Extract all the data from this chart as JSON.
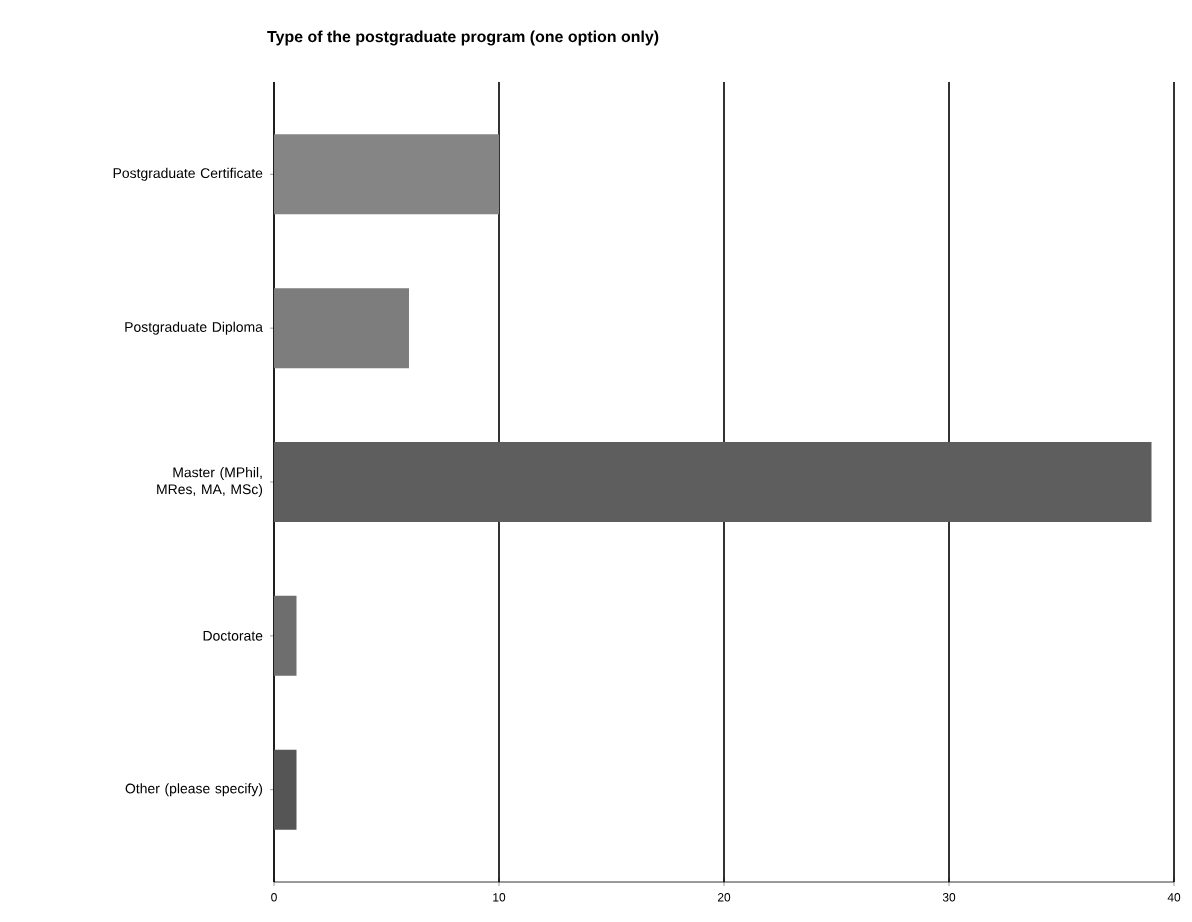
{
  "chart_data": {
    "type": "bar",
    "orientation": "horizontal",
    "title": "Type of the postgraduate  program (one option only)",
    "categories": [
      "Postgraduate Certificate",
      "Postgraduate Diploma",
      "Master (MPhil, MRes, MA, MSc)",
      "Doctorate",
      "Other (please specify)"
    ],
    "values": [
      10,
      6,
      39,
      1,
      1
    ],
    "colors": [
      "#858585",
      "#7d7d7d",
      "#5e5e5e",
      "#6e6e6e",
      "#555555"
    ],
    "xlim": [
      0,
      40
    ],
    "xticks": [
      0,
      10,
      20,
      30,
      40
    ],
    "grid": "x"
  }
}
